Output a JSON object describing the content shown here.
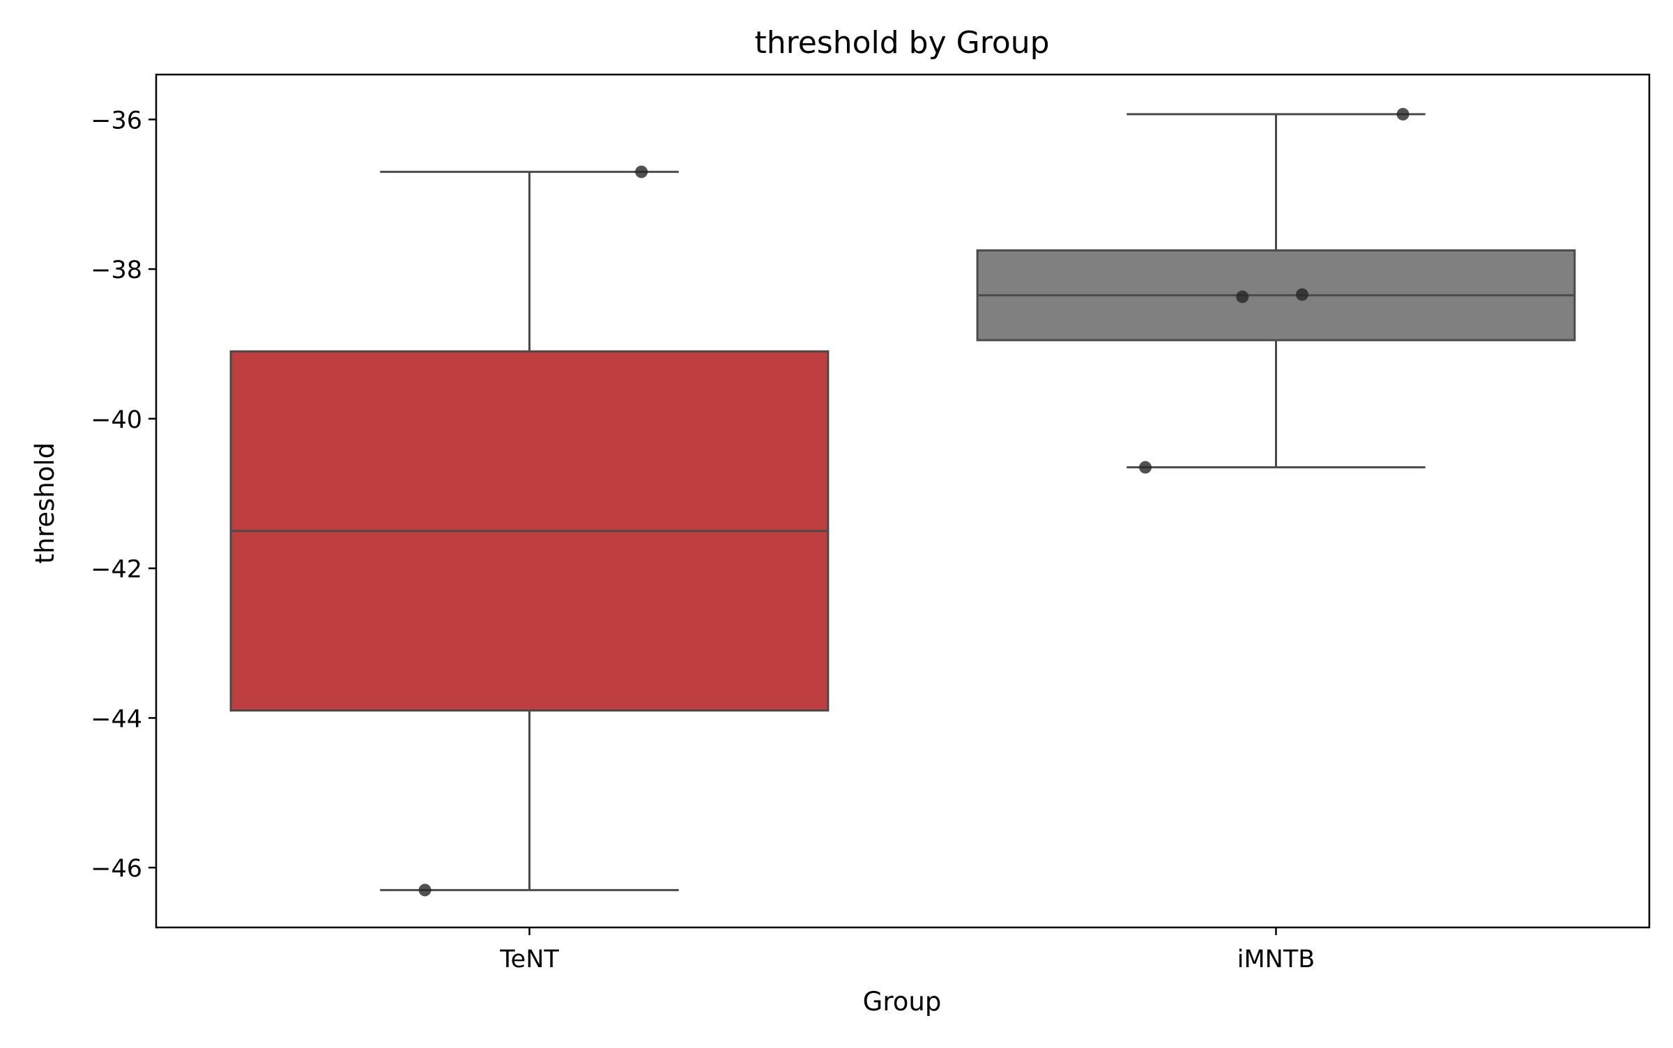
{
  "chart_data": {
    "type": "box",
    "title": "threshold by Group",
    "xlabel": "Group",
    "ylabel": "threshold",
    "ylim": [
      -46.8,
      -35.4
    ],
    "yticks": [
      -46,
      -44,
      -42,
      -40,
      -38,
      -36
    ],
    "ytick_labels": [
      "−46",
      "−44",
      "−42",
      "−40",
      "−38",
      "−36"
    ],
    "categories": [
      "TeNT",
      "iMNTB"
    ],
    "boxes": [
      {
        "category": "TeNT",
        "color": "#bf3e3f",
        "whisker_low": -46.3,
        "q1": -43.9,
        "median": -41.5,
        "q3": -39.1,
        "whisker_high": -36.7,
        "points": [
          -36.7,
          -46.3
        ]
      },
      {
        "category": "iMNTB",
        "color": "#808080",
        "whisker_low": -40.65,
        "q1": -38.95,
        "median": -38.35,
        "q3": -37.75,
        "whisker_high": -35.93,
        "points": [
          -35.93,
          -38.37,
          -38.34,
          -40.65
        ]
      }
    ],
    "grid": false,
    "legend": "none"
  }
}
